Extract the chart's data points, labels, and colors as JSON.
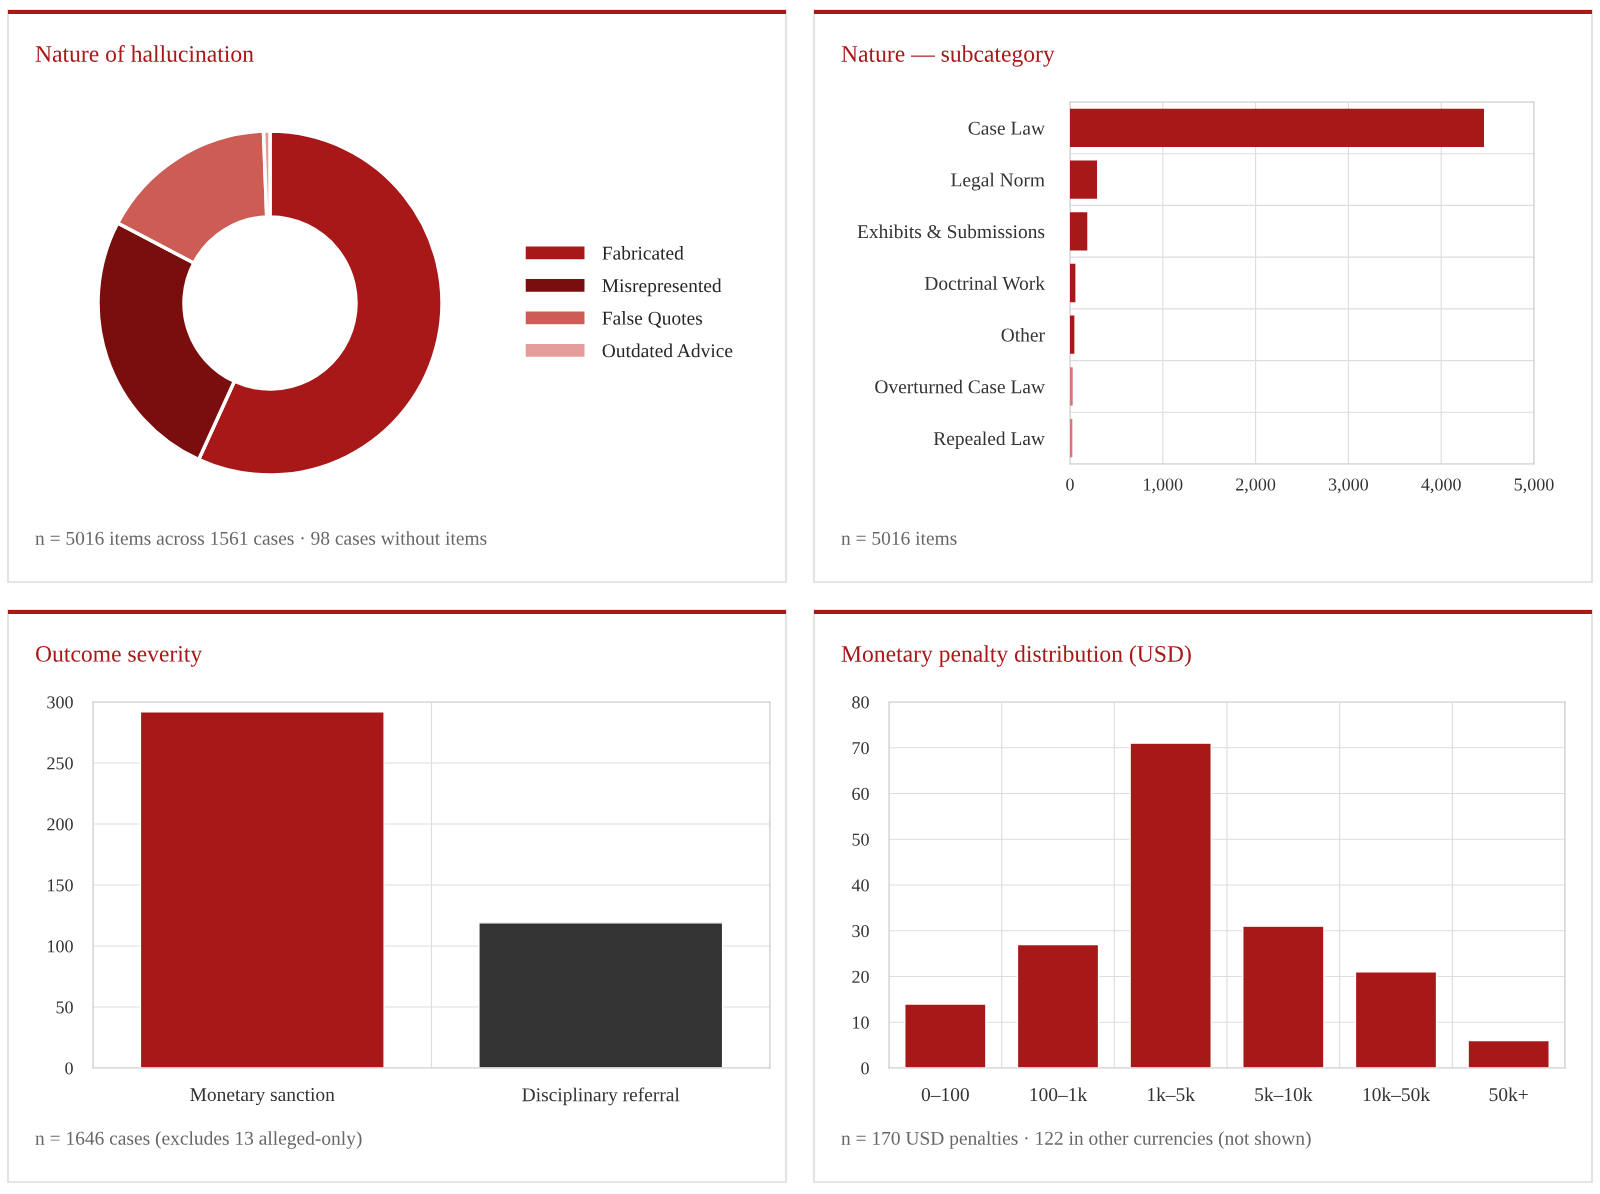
{
  "chart_data": [
    {
      "type": "donut",
      "title": "Nature of hallucination",
      "categories": [
        "Fabricated",
        "Misrepresented",
        "False Quotes",
        "Outdated Advice"
      ],
      "values": [
        56.8,
        25.9,
        16.7,
        0.6
      ],
      "colors": [
        "#a81818",
        "#7a0e0e",
        "#cd5c55",
        "#e49c98"
      ],
      "legend": "right",
      "annotations": [
        "n = 5016 items across 1561 cases · 98 cases without items"
      ]
    },
    {
      "type": "bar",
      "orientation": "horizontal",
      "title": "Nature — subcategory",
      "categories": [
        "Case Law",
        "Legal Norm",
        "Exhibits & Submissions",
        "Doctrinal Work",
        "Other",
        "Overturned Case Law",
        "Repealed Law"
      ],
      "values": [
        4450,
        280,
        175,
        47,
        36,
        18,
        14
      ],
      "colors": [
        "#a81818",
        "#a81818",
        "#a81818",
        "#a81818",
        "#a81818",
        "#d47a76",
        "#d47a76"
      ],
      "xlim": [
        0,
        5000
      ],
      "xticks": [
        0,
        {
          "value": 1000,
          "label": "1,000"
        },
        {
          "value": 2000,
          "label": "2,000"
        },
        {
          "value": 3000,
          "label": "3,000"
        },
        {
          "value": 4000,
          "label": "4,000"
        },
        {
          "value": 5000,
          "label": "5,000"
        }
      ],
      "grid": true,
      "annotations": [
        "n = 5016 items"
      ]
    },
    {
      "type": "bar",
      "title": "Outcome severity",
      "categories": [
        "Monetary sanction",
        "Disciplinary referral"
      ],
      "values": [
        292,
        119
      ],
      "colors": [
        "#a81818",
        "#333333"
      ],
      "ylim": [
        0,
        300
      ],
      "yticks": [
        0,
        50,
        100,
        150,
        200,
        250,
        300
      ],
      "grid": true,
      "annotations": [
        "n = 1646 cases (excludes 13 alleged-only)"
      ]
    },
    {
      "type": "bar",
      "title": "Monetary penalty distribution (USD)",
      "categories": [
        "0–100",
        "100–1k",
        "1k–5k",
        "5k–10k",
        "10k–50k",
        "50k+"
      ],
      "values": [
        14,
        27,
        71,
        31,
        21,
        6
      ],
      "color": "#a81818",
      "ylim": [
        0,
        80
      ],
      "yticks": [
        0,
        10,
        20,
        30,
        40,
        50,
        60,
        70,
        80
      ],
      "grid": true,
      "annotations": [
        "n = 170 USD penalties · 122 in other currencies (not shown)"
      ]
    }
  ]
}
